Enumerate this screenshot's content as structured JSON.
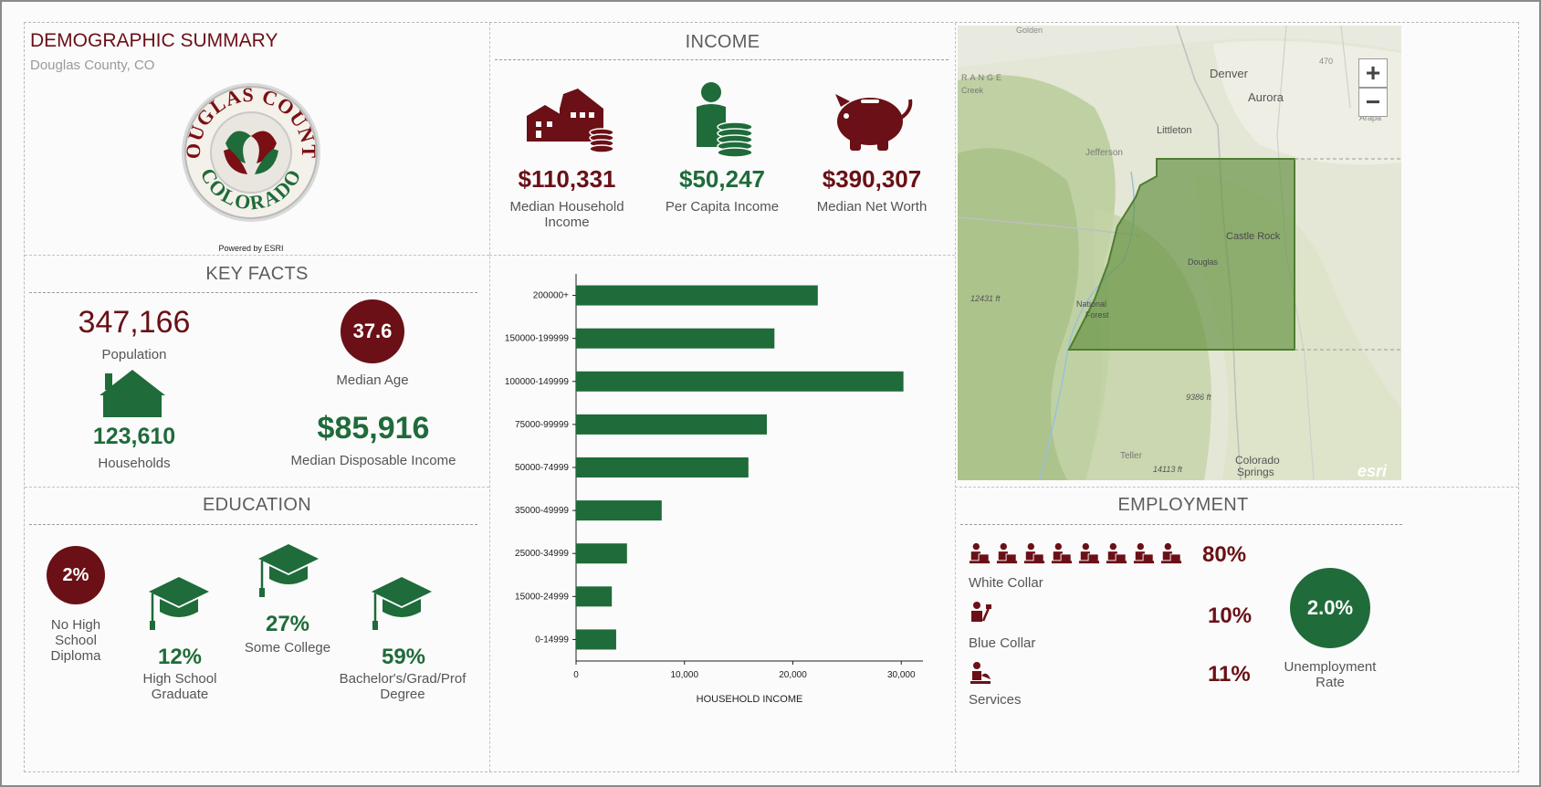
{
  "header": {
    "title": "DEMOGRAPHIC SUMMARY",
    "subtitle": "Douglas County, CO",
    "seal_text_top": "DOUGLAS COUNTY",
    "seal_text_bottom": "COLORADO",
    "powered_by": "Powered by ESRI"
  },
  "income": {
    "title": "INCOME",
    "items": [
      {
        "value": "$110,331",
        "label_line1": "Median Household",
        "label_line2": "Income",
        "icon": "house-coins-icon",
        "color": "#6a1016"
      },
      {
        "value": "$50,247",
        "label_line1": "Per Capita Income",
        "label_line2": "",
        "icon": "person-coins-icon",
        "color": "#1f6b3a"
      },
      {
        "value": "$390,307",
        "label_line1": "Median Net Worth",
        "label_line2": "",
        "icon": "piggy-bank-icon",
        "color": "#6a1016"
      }
    ]
  },
  "key_facts": {
    "title": "KEY FACTS",
    "population_value": "347,166",
    "population_label": "Population",
    "median_age_value": "37.6",
    "median_age_label": "Median Age",
    "households_value": "123,610",
    "households_label": "Households",
    "disposable_income_value": "$85,916",
    "disposable_income_label": "Median Disposable Income"
  },
  "education": {
    "title": "EDUCATION",
    "no_hs_value": "2%",
    "no_hs_label_1": "No High",
    "no_hs_label_2": "School",
    "no_hs_label_3": "Diploma",
    "hs_value": "12%",
    "hs_label_1": "High School",
    "hs_label_2": "Graduate",
    "college_value": "27%",
    "college_label": "Some College",
    "bachelor_value": "59%",
    "bachelor_label_1": "Bachelor's/Grad/Prof",
    "bachelor_label_2": "Degree"
  },
  "chart_data": {
    "type": "bar",
    "orientation": "horizontal",
    "categories": [
      "200000+",
      "150000-199999",
      "100000-149999",
      "75000-99999",
      "50000-74999",
      "35000-49999",
      "25000-34999",
      "15000-24999",
      "0-14999"
    ],
    "values": [
      22300,
      18300,
      30200,
      17600,
      15900,
      7900,
      4700,
      3300,
      3700
    ],
    "xlabel": "HOUSEHOLD INCOME",
    "ylabel": "",
    "xlim": [
      0,
      32000
    ],
    "xticks": [
      0,
      10000,
      20000,
      30000
    ],
    "xtick_labels": [
      "0",
      "10,000",
      "20,000",
      "30,000"
    ],
    "bar_color": "#1f6b3a"
  },
  "map": {
    "zoom_in": "+",
    "zoom_out": "−",
    "attribution": "esri",
    "labels": [
      "Golden",
      "Denver",
      "Aurora",
      "Littleton",
      "Jefferson",
      "Castle Rock",
      "Douglas",
      "12431 ft",
      "National",
      "Forest",
      "9386 ft",
      "Teller",
      "14113 ft",
      "Colorado",
      "Springs",
      "RANGE",
      "Creek",
      "Arapa",
      "470"
    ]
  },
  "employment": {
    "title": "EMPLOYMENT",
    "white_collar_value": "80%",
    "white_collar_label": "White Collar",
    "blue_collar_value": "10%",
    "blue_collar_label": "Blue Collar",
    "services_value": "11%",
    "services_label": "Services",
    "unemployment_value": "2.0%",
    "unemployment_label_1": "Unemployment",
    "unemployment_label_2": "Rate"
  },
  "colors": {
    "maroon": "#6a1016",
    "green": "#1f6b3a",
    "map_polygon": "#6e9a4c"
  }
}
